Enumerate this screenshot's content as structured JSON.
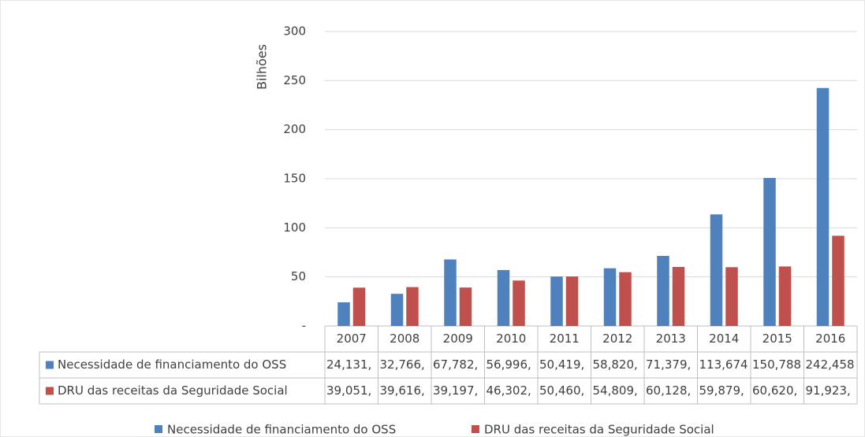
{
  "chart_data": {
    "type": "bar",
    "y_label": "Bilhões",
    "categories": [
      "2007",
      "2008",
      "2009",
      "2010",
      "2011",
      "2012",
      "2013",
      "2014",
      "2015",
      "2016"
    ],
    "series": [
      {
        "name": "Necessidade de financiamento do OSS",
        "color": "#4f81bd",
        "values": [
          24.131,
          32.766,
          67.782,
          56.996,
          50.419,
          58.82,
          71.379,
          113.674,
          150.788,
          242.458
        ],
        "value_labels": [
          "24,131,",
          "32,766,",
          "67,782,",
          "56,996,",
          "50,419,",
          "58,820,",
          "71,379,",
          "113,674",
          "150,788",
          "242,458"
        ]
      },
      {
        "name": "DRU das receitas da Seguridade Social",
        "color": "#c0504d",
        "values": [
          39.051,
          39.616,
          39.197,
          46.302,
          50.46,
          54.809,
          60.128,
          59.879,
          60.62,
          91.923
        ],
        "value_labels": [
          "39,051,",
          "39,616,",
          "39,197,",
          "46,302,",
          "50,460,",
          "54,809,",
          "60,128,",
          "59,879,",
          "60,620,",
          "91,923,"
        ]
      }
    ],
    "ylim": [
      0,
      300
    ],
    "yticks": [
      {
        "value": 0,
        "label": "-"
      },
      50,
      100,
      150,
      200,
      250,
      300
    ],
    "grid": true
  }
}
